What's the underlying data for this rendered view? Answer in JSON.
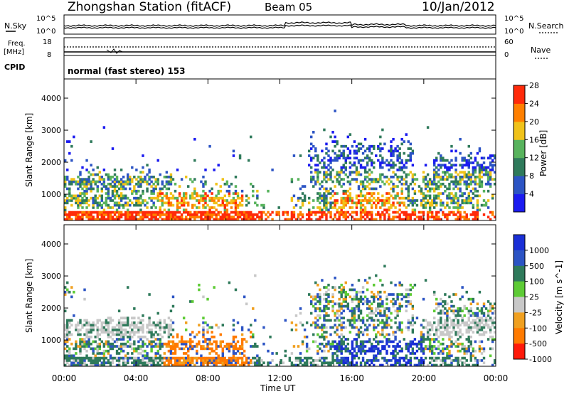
{
  "header": {
    "station": "Zhongshan Station (fitACF)",
    "beam": "Beam 05",
    "date": "10/Jan/2012"
  },
  "top_panel": {
    "left_label": "N.Sky",
    "right_label": "N.Search",
    "left_ticks": [
      "10^5",
      "10^0"
    ],
    "right_ticks": [
      "10^5",
      "10^0"
    ]
  },
  "freq_panel": {
    "left_label_line1": "Freq.",
    "left_label_line2": "[MHz]",
    "right_label": "Nave",
    "left_ticks": [
      "18",
      "8"
    ],
    "right_ticks": [
      "60",
      "0"
    ],
    "cpid_label": "CPID",
    "mode_text": "normal (fast stereo) 153"
  },
  "chart_data": [
    {
      "type": "heatmap",
      "name": "power",
      "ylabel": "Slant Range [km]",
      "xlabel": "Time UT",
      "x_ticks": [
        "00:00",
        "04:00",
        "08:00",
        "12:00",
        "16:00",
        "20:00",
        "00:00"
      ],
      "y_ticks": [
        1000,
        2000,
        3000,
        4000
      ],
      "ylim": [
        180,
        4600
      ],
      "xlim_hours": [
        0,
        24
      ],
      "colorbar": {
        "label": "Power [dB]",
        "ticks": [
          "4",
          "8",
          "12",
          "16",
          "20",
          "24",
          "28"
        ],
        "colors": [
          "#1b1bf0",
          "#2c54c4",
          "#2f7a5b",
          "#58b35d",
          "#f0c21a",
          "#ff7f00",
          "#ff2a0a"
        ]
      }
    },
    {
      "type": "heatmap",
      "name": "velocity",
      "ylabel": "Slant Range [km]",
      "xlabel": "Time UT",
      "x_ticks": [
        "00:00",
        "04:00",
        "08:00",
        "12:00",
        "16:00",
        "20:00",
        "00:00"
      ],
      "y_ticks": [
        1000,
        2000,
        3000,
        4000
      ],
      "ylim": [
        180,
        4600
      ],
      "xlim_hours": [
        0,
        24
      ],
      "colorbar": {
        "label": "Velocity [m s^-1]",
        "ticks": [
          "1000",
          "500",
          "100",
          "25",
          "-25",
          "-100",
          "-500",
          "-1000"
        ],
        "colors": [
          "#1a2fd6",
          "#2c54c4",
          "#2f7a5b",
          "#5dcb35",
          "#c8c8c8",
          "#f0a020",
          "#ff7a00",
          "#ff1a0a"
        ]
      }
    }
  ],
  "time_axis_label": "Time UT"
}
